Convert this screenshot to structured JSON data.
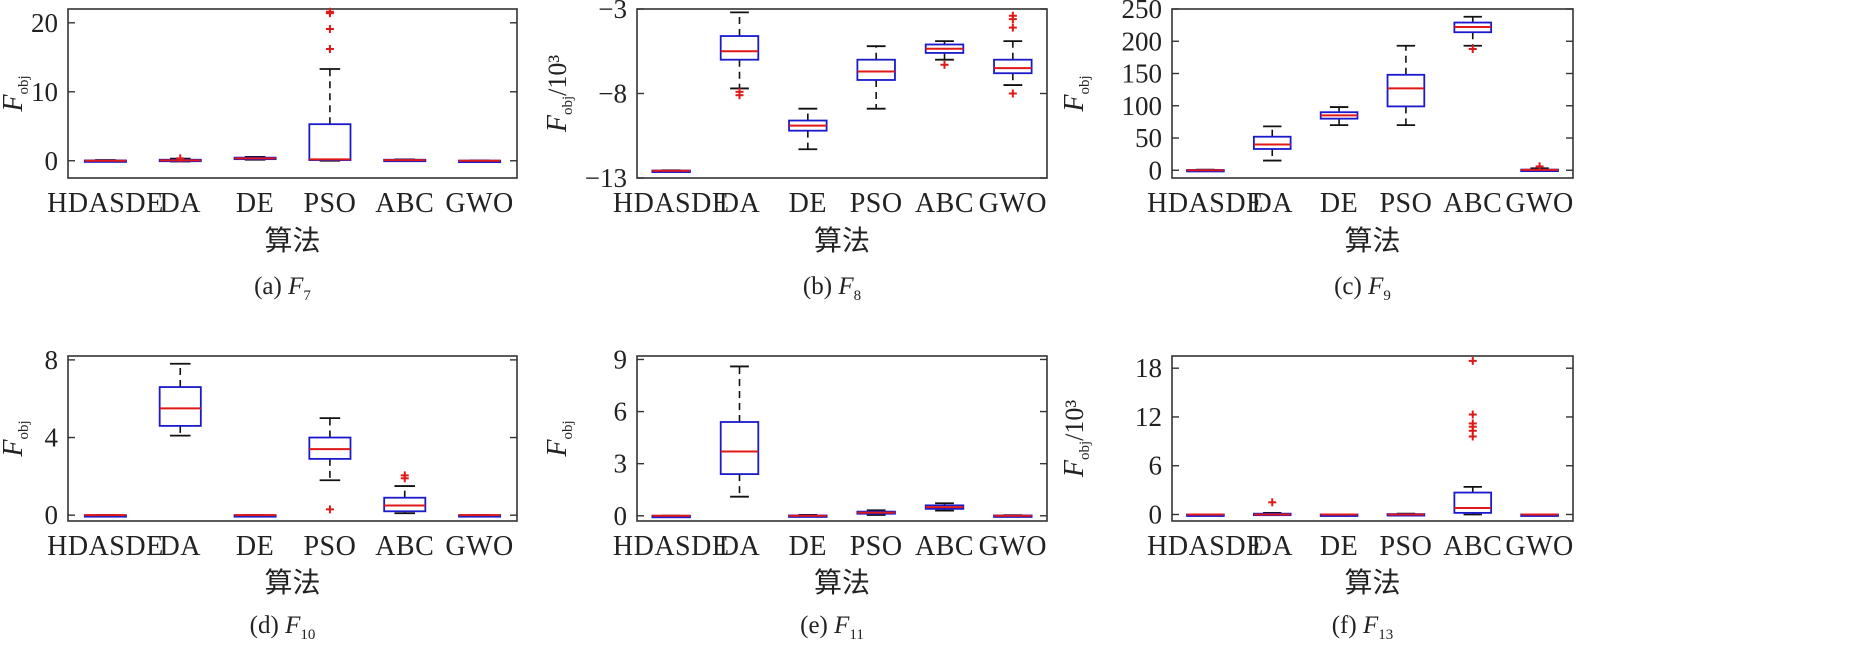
{
  "colors": {
    "box": "#1a1acc",
    "median": "#e01818",
    "whisker": "#111111",
    "outlier": "#e01818",
    "axis": "#333333"
  },
  "chart_data": [
    {
      "type": "box",
      "caption": "(a) F7",
      "caption_prefix": "(a)",
      "caption_var": "F",
      "caption_sub": "7",
      "xlabel": "算法",
      "ylabel": "F",
      "ylabel_sub": "obj",
      "ylabel_unit": "",
      "ylim": [
        -2.5,
        22
      ],
      "yticks": [
        0,
        10,
        20
      ],
      "categories": [
        "HDASDE",
        "DA",
        "DE",
        "PSO",
        "ABC",
        "GWO"
      ],
      "boxes": [
        {
          "min": -0.1,
          "q1": -0.05,
          "median": 0,
          "q3": 0.05,
          "max": 0.1,
          "outliers": []
        },
        {
          "min": -0.1,
          "q1": 0,
          "median": 0.05,
          "q3": 0.15,
          "max": 0.3,
          "outliers": [
            0.35
          ]
        },
        {
          "min": 0.15,
          "q1": 0.25,
          "median": 0.35,
          "q3": 0.45,
          "max": 0.55,
          "outliers": []
        },
        {
          "min": 0,
          "q1": 0.1,
          "median": 0.2,
          "q3": 5.3,
          "max": 13.3,
          "outliers": [
            16.2,
            19.1,
            21.4,
            21.6
          ]
        },
        {
          "min": 0,
          "q1": 0.05,
          "median": 0.1,
          "q3": 0.15,
          "max": 0.2,
          "outliers": []
        },
        {
          "min": -0.05,
          "q1": -0.02,
          "median": 0,
          "q3": 0.02,
          "max": 0.05,
          "outliers": []
        }
      ]
    },
    {
      "type": "box",
      "caption": "(b) F8",
      "caption_prefix": "(b)",
      "caption_var": "F",
      "caption_sub": "8",
      "xlabel": "算法",
      "ylabel": "F",
      "ylabel_sub": "obj",
      "ylabel_unit": "/10³",
      "ylim": [
        -13,
        -3
      ],
      "yticks": [
        -3,
        -8,
        -13
      ],
      "categories": [
        "HDASDE",
        "DA",
        "DE",
        "PSO",
        "ABC",
        "GWO"
      ],
      "boxes": [
        {
          "min": -12.6,
          "q1": -12.58,
          "median": -12.57,
          "q3": -12.56,
          "max": -12.54,
          "outliers": []
        },
        {
          "min": -7.7,
          "q1": -6.0,
          "median": -5.5,
          "q3": -4.6,
          "max": -3.2,
          "outliers": [
            -7.9,
            -8.1
          ]
        },
        {
          "min": -11.3,
          "q1": -10.2,
          "median": -9.9,
          "q3": -9.6,
          "max": -8.9,
          "outliers": []
        },
        {
          "min": -8.9,
          "q1": -7.2,
          "median": -6.7,
          "q3": -6.0,
          "max": -5.2,
          "outliers": []
        },
        {
          "min": -6.0,
          "q1": -5.6,
          "median": -5.35,
          "q3": -5.1,
          "max": -4.9,
          "outliers": [
            -6.3
          ]
        },
        {
          "min": -7.5,
          "q1": -6.8,
          "median": -6.5,
          "q3": -6.0,
          "max": -4.9,
          "outliers": [
            -8.0,
            -3.4,
            -3.6,
            -4.1
          ]
        }
      ]
    },
    {
      "type": "box",
      "caption": "(c) F9",
      "caption_prefix": "(c)",
      "caption_var": "F",
      "caption_sub": "9",
      "xlabel": "算法",
      "ylabel": "F",
      "ylabel_sub": "obj",
      "ylabel_unit": "",
      "ylim": [
        -12,
        250
      ],
      "yticks": [
        0,
        50,
        100,
        150,
        200,
        250
      ],
      "categories": [
        "HDASDE",
        "DA",
        "DE",
        "PSO",
        "ABC",
        "GWO"
      ],
      "boxes": [
        {
          "min": 0,
          "q1": 0,
          "median": 0,
          "q3": 0.5,
          "max": 1,
          "outliers": []
        },
        {
          "min": 15,
          "q1": 33,
          "median": 40,
          "q3": 52,
          "max": 68,
          "outliers": []
        },
        {
          "min": 70,
          "q1": 80,
          "median": 85,
          "q3": 90,
          "max": 98,
          "outliers": []
        },
        {
          "min": 70,
          "q1": 99,
          "median": 127,
          "q3": 148,
          "max": 193,
          "outliers": []
        },
        {
          "min": 193,
          "q1": 214,
          "median": 222,
          "q3": 229,
          "max": 238,
          "outliers": [
            188
          ]
        },
        {
          "min": 0,
          "q1": 0,
          "median": 0.5,
          "q3": 1,
          "max": 3,
          "outliers": [
            6
          ]
        }
      ]
    },
    {
      "type": "box",
      "caption": "(d) F10",
      "caption_prefix": "(d)",
      "caption_var": "F",
      "caption_sub": "10",
      "xlabel": "算法",
      "ylabel": "F",
      "ylabel_sub": "obj",
      "ylabel_unit": "",
      "ylim": [
        -0.3,
        8.2
      ],
      "yticks": [
        0,
        4,
        8
      ],
      "categories": [
        "HDASDE",
        "DA",
        "DE",
        "PSO",
        "ABC",
        "GWO"
      ],
      "boxes": [
        {
          "min": 0,
          "q1": 0,
          "median": 0,
          "q3": 0,
          "max": 0,
          "outliers": []
        },
        {
          "min": 4.1,
          "q1": 4.6,
          "median": 5.5,
          "q3": 6.6,
          "max": 7.8,
          "outliers": []
        },
        {
          "min": 0,
          "q1": 0,
          "median": 0,
          "q3": 0,
          "max": 0,
          "outliers": []
        },
        {
          "min": 1.8,
          "q1": 2.9,
          "median": 3.4,
          "q3": 4.0,
          "max": 5.0,
          "outliers": [
            0.3
          ]
        },
        {
          "min": 0.1,
          "q1": 0.2,
          "median": 0.5,
          "q3": 0.9,
          "max": 1.5,
          "outliers": [
            1.9,
            2.05
          ]
        },
        {
          "min": 0,
          "q1": 0,
          "median": 0,
          "q3": 0,
          "max": 0,
          "outliers": []
        }
      ]
    },
    {
      "type": "box",
      "caption": "(e) F11",
      "caption_prefix": "(e)",
      "caption_var": "F",
      "caption_sub": "11",
      "xlabel": "算法",
      "ylabel": "F",
      "ylabel_sub": "obj",
      "ylabel_unit": "",
      "ylim": [
        -0.3,
        9.2
      ],
      "yticks": [
        0,
        3,
        6,
        9
      ],
      "categories": [
        "HDASDE",
        "DA",
        "DE",
        "PSO",
        "ABC",
        "GWO"
      ],
      "boxes": [
        {
          "min": 0,
          "q1": 0,
          "median": 0,
          "q3": 0,
          "max": 0,
          "outliers": []
        },
        {
          "min": 1.1,
          "q1": 2.4,
          "median": 3.7,
          "q3": 5.4,
          "max": 8.6,
          "outliers": []
        },
        {
          "min": 0,
          "q1": 0,
          "median": 0,
          "q3": 0.02,
          "max": 0.05,
          "outliers": []
        },
        {
          "min": 0.05,
          "q1": 0.12,
          "median": 0.18,
          "q3": 0.24,
          "max": 0.32,
          "outliers": []
        },
        {
          "min": 0.3,
          "q1": 0.4,
          "median": 0.5,
          "q3": 0.6,
          "max": 0.72,
          "outliers": []
        },
        {
          "min": 0,
          "q1": 0,
          "median": 0,
          "q3": 0.02,
          "max": 0.04,
          "outliers": []
        }
      ]
    },
    {
      "type": "box",
      "caption": "(f) F13",
      "caption_prefix": "(f)",
      "caption_var": "F",
      "caption_sub": "13",
      "xlabel": "算法",
      "ylabel": "F",
      "ylabel_sub": "obj",
      "ylabel_unit": "/10³",
      "ylim": [
        -0.8,
        19.5
      ],
      "yticks": [
        0,
        6,
        12,
        18
      ],
      "categories": [
        "HDASDE",
        "DA",
        "DE",
        "PSO",
        "ABC",
        "GWO"
      ],
      "boxes": [
        {
          "min": 0,
          "q1": 0,
          "median": 0,
          "q3": 0,
          "max": 0,
          "outliers": []
        },
        {
          "min": 0,
          "q1": 0,
          "median": 0,
          "q3": 0.1,
          "max": 0.2,
          "outliers": [
            1.5
          ]
        },
        {
          "min": 0,
          "q1": 0,
          "median": 0,
          "q3": 0,
          "max": 0,
          "outliers": []
        },
        {
          "min": 0,
          "q1": 0,
          "median": 0,
          "q3": 0.05,
          "max": 0.1,
          "outliers": []
        },
        {
          "min": 0,
          "q1": 0.2,
          "median": 0.8,
          "q3": 2.7,
          "max": 3.4,
          "outliers": [
            9.6,
            10.3,
            10.8,
            11.2,
            12.3,
            18.9
          ]
        },
        {
          "min": 0,
          "q1": 0,
          "median": 0,
          "q3": 0,
          "max": 0,
          "outliers": []
        }
      ]
    }
  ]
}
